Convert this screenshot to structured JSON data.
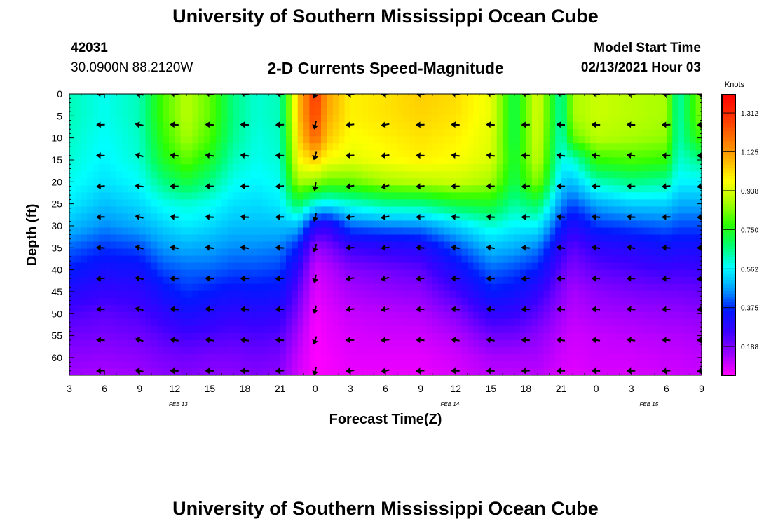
{
  "header": {
    "title": "University of Southern Mississippi Ocean Cube",
    "station_id": "42031",
    "station_coords": "30.0900N 88.2120W",
    "subtitle": "2-D Currents Speed-Magnitude",
    "model_start_label": "Model Start Time",
    "model_start_value": "02/13/2021 Hour 03"
  },
  "footer": {
    "title": "University of Southern Mississippi Ocean Cube"
  },
  "colors": {
    "scale": [
      "#ff00ff",
      "#9b00ff",
      "#3a00ff",
      "#0018ff",
      "#00a0ff",
      "#00ffff",
      "#00ff70",
      "#2cff00",
      "#a8ff00",
      "#ffff00",
      "#ffb000",
      "#ff7000",
      "#ff3000",
      "#ff0000"
    ],
    "arrow": "#000000"
  },
  "chart_data": {
    "type": "heatmap",
    "title": "2-D Currents Speed-Magnitude",
    "xlabel": "Forecast Time(Z)",
    "ylabel": "Depth (ft)",
    "x_tick_labels": [
      "3",
      "6",
      "9",
      "12",
      "15",
      "18",
      "21",
      "0",
      "3",
      "6",
      "9",
      "12",
      "15",
      "18",
      "21",
      "0",
      "3",
      "6",
      "9"
    ],
    "x_tick_hours": [
      0,
      3,
      6,
      9,
      12,
      15,
      18,
      21,
      24,
      27,
      30,
      33,
      36,
      39,
      42,
      45,
      48,
      51,
      54
    ],
    "x_range_hours": [
      0,
      54
    ],
    "date_labels": [
      {
        "text": "FEB 13",
        "hour": 9.3
      },
      {
        "text": "FEB 14",
        "hour": 32.5
      },
      {
        "text": "FEB 15",
        "hour": 49.5
      }
    ],
    "y_ticks": [
      0,
      5,
      10,
      15,
      20,
      25,
      30,
      35,
      40,
      45,
      50,
      55,
      60
    ],
    "y_range": [
      0,
      64
    ],
    "y_inverted": true,
    "colorbar": {
      "label": "Knots",
      "ticks": [
        0.188,
        0.375,
        0.562,
        0.75,
        0.938,
        1.125,
        1.312
      ],
      "tick_labels": [
        "0.188",
        "0.375",
        "0.562",
        "0.750",
        "0.938",
        "1.125",
        "1.312"
      ],
      "range": [
        0.05,
        1.4
      ]
    },
    "profiles": {
      "description": "approximate speed (knots) per forecast hour at depths [0,5,10,15,20,25,30,35,40,45,50,55,60,64] ft",
      "depths": [
        0,
        5,
        10,
        15,
        20,
        25,
        30,
        35,
        40,
        45,
        50,
        55,
        60,
        64
      ],
      "hours": [
        0,
        3,
        6,
        8,
        10,
        12,
        14,
        16,
        18,
        19.5,
        21,
        22,
        24,
        27,
        30,
        33,
        36,
        38,
        40,
        42,
        43,
        45,
        48,
        51,
        52,
        54
      ],
      "values": [
        [
          0.62,
          0.62,
          0.61,
          0.6,
          0.58,
          0.55,
          0.5,
          0.42,
          0.36,
          0.3,
          0.24,
          0.2,
          0.17,
          0.15
        ],
        [
          0.58,
          0.58,
          0.57,
          0.56,
          0.54,
          0.5,
          0.45,
          0.38,
          0.32,
          0.27,
          0.22,
          0.19,
          0.16,
          0.14
        ],
        [
          0.62,
          0.62,
          0.61,
          0.6,
          0.57,
          0.53,
          0.48,
          0.4,
          0.33,
          0.28,
          0.24,
          0.2,
          0.17,
          0.15
        ],
        [
          0.8,
          0.8,
          0.78,
          0.74,
          0.66,
          0.58,
          0.52,
          0.46,
          0.4,
          0.34,
          0.28,
          0.23,
          0.19,
          0.17
        ],
        [
          0.9,
          0.9,
          0.88,
          0.82,
          0.72,
          0.6,
          0.55,
          0.48,
          0.42,
          0.38,
          0.32,
          0.25,
          0.2,
          0.18
        ],
        [
          0.82,
          0.82,
          0.8,
          0.74,
          0.66,
          0.58,
          0.53,
          0.47,
          0.42,
          0.36,
          0.3,
          0.24,
          0.19,
          0.17
        ],
        [
          0.66,
          0.66,
          0.65,
          0.62,
          0.58,
          0.54,
          0.5,
          0.45,
          0.4,
          0.34,
          0.28,
          0.23,
          0.19,
          0.17
        ],
        [
          0.6,
          0.6,
          0.59,
          0.58,
          0.56,
          0.53,
          0.5,
          0.45,
          0.4,
          0.35,
          0.29,
          0.24,
          0.2,
          0.18
        ],
        [
          0.62,
          0.62,
          0.61,
          0.6,
          0.58,
          0.55,
          0.5,
          0.44,
          0.39,
          0.34,
          0.28,
          0.23,
          0.19,
          0.17
        ],
        [
          1.05,
          1.05,
          1.02,
          0.98,
          0.88,
          0.7,
          0.5,
          0.36,
          0.28,
          0.22,
          0.18,
          0.14,
          0.11,
          0.1
        ],
        [
          1.3,
          1.28,
          1.22,
          1.05,
          0.86,
          0.58,
          0.3,
          0.16,
          0.1,
          0.08,
          0.06,
          0.05,
          0.05,
          0.05
        ],
        [
          1.12,
          1.1,
          1.06,
          0.98,
          0.82,
          0.55,
          0.28,
          0.18,
          0.12,
          0.1,
          0.08,
          0.07,
          0.06,
          0.06
        ],
        [
          1.0,
          1.0,
          0.98,
          0.95,
          0.82,
          0.6,
          0.42,
          0.26,
          0.18,
          0.14,
          0.11,
          0.09,
          0.08,
          0.07
        ],
        [
          1.02,
          1.02,
          1.0,
          0.98,
          0.88,
          0.65,
          0.44,
          0.28,
          0.2,
          0.16,
          0.12,
          0.1,
          0.08,
          0.07
        ],
        [
          1.05,
          1.04,
          1.02,
          1.0,
          0.9,
          0.66,
          0.45,
          0.3,
          0.22,
          0.17,
          0.13,
          0.1,
          0.08,
          0.07
        ],
        [
          1.03,
          1.02,
          1.0,
          0.98,
          0.92,
          0.72,
          0.52,
          0.4,
          0.32,
          0.25,
          0.18,
          0.13,
          0.1,
          0.09
        ],
        [
          0.96,
          0.96,
          0.95,
          0.94,
          0.88,
          0.74,
          0.6,
          0.5,
          0.42,
          0.36,
          0.28,
          0.2,
          0.14,
          0.12
        ],
        [
          0.7,
          0.7,
          0.7,
          0.72,
          0.7,
          0.64,
          0.56,
          0.48,
          0.4,
          0.34,
          0.27,
          0.2,
          0.14,
          0.12
        ],
        [
          0.95,
          0.95,
          0.94,
          0.92,
          0.86,
          0.7,
          0.56,
          0.44,
          0.36,
          0.28,
          0.22,
          0.17,
          0.14,
          0.12
        ],
        [
          0.62,
          0.62,
          0.6,
          0.58,
          0.52,
          0.45,
          0.36,
          0.28,
          0.22,
          0.18,
          0.15,
          0.12,
          0.1,
          0.09
        ],
        [
          0.88,
          0.88,
          0.82,
          0.6,
          0.5,
          0.4,
          0.3,
          0.22,
          0.18,
          0.14,
          0.12,
          0.1,
          0.09,
          0.08
        ],
        [
          0.92,
          0.92,
          0.9,
          0.78,
          0.62,
          0.48,
          0.38,
          0.28,
          0.22,
          0.17,
          0.14,
          0.11,
          0.1,
          0.09
        ],
        [
          0.9,
          0.9,
          0.88,
          0.8,
          0.66,
          0.52,
          0.4,
          0.3,
          0.24,
          0.19,
          0.15,
          0.12,
          0.1,
          0.09
        ],
        [
          0.88,
          0.88,
          0.86,
          0.78,
          0.64,
          0.52,
          0.42,
          0.33,
          0.26,
          0.2,
          0.16,
          0.13,
          0.11,
          0.1
        ],
        [
          0.62,
          0.62,
          0.62,
          0.6,
          0.56,
          0.48,
          0.4,
          0.32,
          0.25,
          0.2,
          0.16,
          0.13,
          0.11,
          0.1
        ],
        [
          0.86,
          0.86,
          0.8,
          0.66,
          0.56,
          0.48,
          0.4,
          0.32,
          0.26,
          0.21,
          0.17,
          0.14,
          0.12,
          0.11
        ]
      ]
    },
    "vectors": {
      "description": "current direction arrows drawn at each forecast time column and depth row; angle in degrees (0 = east, 180 = west, counter-clockwise positive)",
      "hours": [
        2.7,
        6,
        9,
        12,
        15,
        18,
        21,
        24,
        27,
        30,
        33,
        36,
        39,
        42,
        45,
        48,
        51,
        54
      ],
      "depths": [
        0,
        7,
        14,
        21,
        28,
        35,
        42,
        49,
        56,
        63
      ],
      "default_angle": 175,
      "column_angle_offsets": [
        5,
        -8,
        0,
        0,
        0,
        5,
        80,
        10,
        15,
        5,
        0,
        0,
        5,
        0,
        0,
        0,
        5,
        10
      ]
    }
  }
}
